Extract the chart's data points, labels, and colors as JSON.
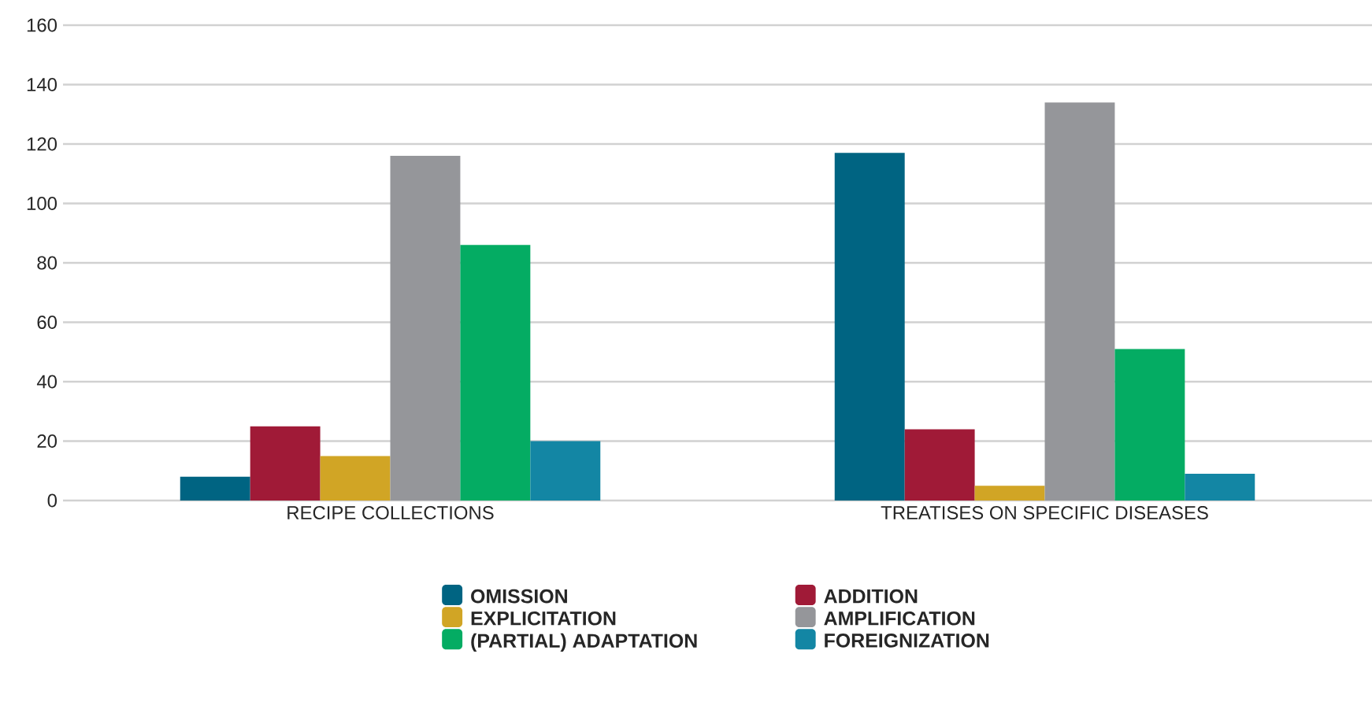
{
  "chart_data": {
    "type": "bar",
    "categories": [
      "RECIPE COLLECTIONS",
      "TREATISES ON SPECIFIC DISEASES"
    ],
    "series": [
      {
        "name": "OMISSION",
        "color": "#006482",
        "values": [
          8,
          117
        ]
      },
      {
        "name": "ADDITION",
        "color": "#a01a37",
        "values": [
          25,
          24
        ]
      },
      {
        "name": "EXPLICITATION",
        "color": "#d1a525",
        "values": [
          15,
          5
        ]
      },
      {
        "name": "AMPLIFICATION",
        "color": "#95969a",
        "values": [
          116,
          134
        ]
      },
      {
        "name": "(PARTIAL) ADAPTATION",
        "color": "#04ac63",
        "values": [
          86,
          51
        ]
      },
      {
        "name": "FOREIGNIZATION",
        "color": "#1386a4",
        "values": [
          20,
          9
        ]
      }
    ],
    "ylim": [
      0,
      160
    ],
    "yticks": [
      0,
      20,
      40,
      60,
      80,
      100,
      120,
      140,
      160
    ],
    "grid": "y",
    "legend": "bottom"
  }
}
